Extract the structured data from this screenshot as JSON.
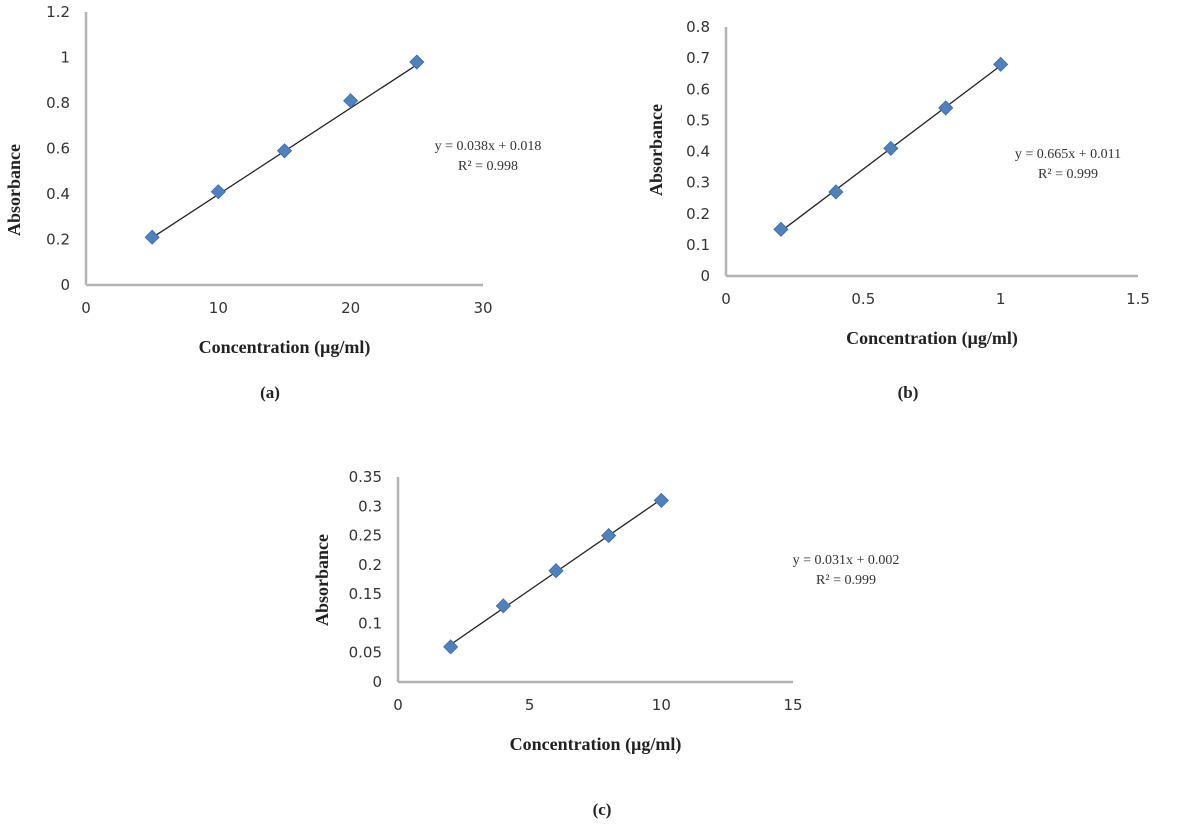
{
  "colors": {
    "marker": "#4f81bd",
    "axis": "#b3b3b3",
    "trendline": "#222222"
  },
  "chart_data": [
    {
      "type": "scatter",
      "caption": "(a)",
      "xlabel": "Concentration (µg/ml)",
      "ylabel": "Absorbance",
      "xlim": [
        0,
        30
      ],
      "ylim": [
        0,
        1.2
      ],
      "xticks": [
        "0",
        "10",
        "20",
        "30"
      ],
      "yticks": [
        "0",
        "0.2",
        "0.4",
        "0.6",
        "0.8",
        "1",
        "1.2"
      ],
      "x": [
        5,
        10,
        15,
        20,
        25
      ],
      "y": [
        0.21,
        0.41,
        0.59,
        0.81,
        0.98
      ],
      "trendline": {
        "equation": "y = 0.038x + 0.018",
        "r2": "R² = 0.998",
        "slope": 0.038,
        "intercept": 0.018
      },
      "grid": false
    },
    {
      "type": "scatter",
      "caption": "(b)",
      "xlabel": "Concentration (µg/ml)",
      "ylabel": "Absorbance",
      "xlim": [
        0,
        1.5
      ],
      "ylim": [
        0,
        0.8
      ],
      "xticks": [
        "0",
        "0.5",
        "1",
        "1.5"
      ],
      "yticks": [
        "0",
        "0.1",
        "0.2",
        "0.3",
        "0.4",
        "0.5",
        "0.6",
        "0.7",
        "0.8"
      ],
      "x": [
        0.2,
        0.4,
        0.6,
        0.8,
        1.0
      ],
      "y": [
        0.15,
        0.27,
        0.41,
        0.54,
        0.68
      ],
      "trendline": {
        "equation": "y = 0.665x + 0.011",
        "r2": "R² = 0.999",
        "slope": 0.665,
        "intercept": 0.011
      },
      "grid": false
    },
    {
      "type": "scatter",
      "caption": "(c)",
      "xlabel": "Concentration (µg/ml)",
      "ylabel": "Absorbance",
      "xlim": [
        0,
        15
      ],
      "ylim": [
        0,
        0.35
      ],
      "xticks": [
        "0",
        "5",
        "10",
        "15"
      ],
      "yticks": [
        "0",
        "0.05",
        "0.1",
        "0.15",
        "0.2",
        "0.25",
        "0.3",
        "0.35"
      ],
      "x": [
        2,
        4,
        6,
        8,
        10
      ],
      "y": [
        0.06,
        0.13,
        0.19,
        0.25,
        0.31
      ],
      "trendline": {
        "equation": "y = 0.031x + 0.002",
        "r2": "R² = 0.999",
        "slope": 0.031,
        "intercept": 0.002
      },
      "grid": false
    }
  ]
}
